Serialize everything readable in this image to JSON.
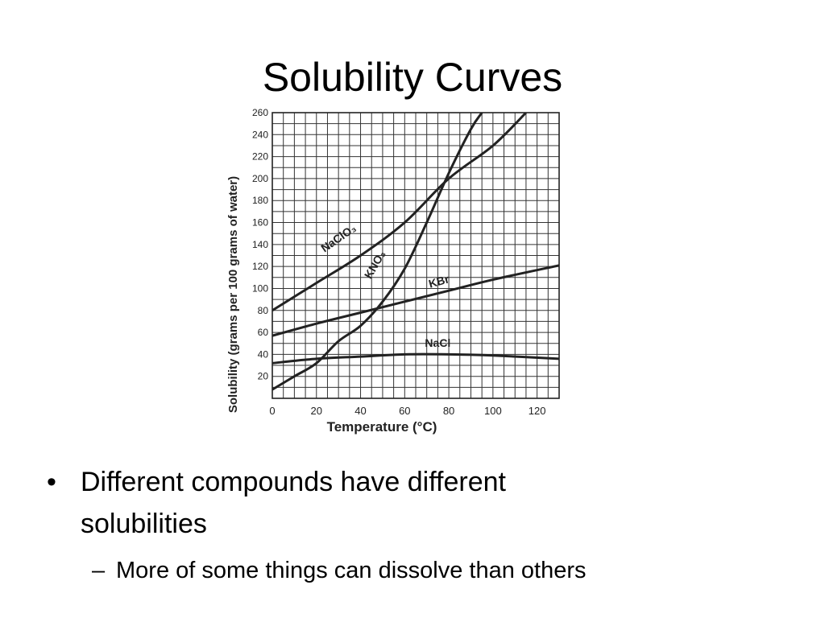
{
  "slide": {
    "title": "Solubility Curves",
    "bullet_marker": "•",
    "sub_marker": "–",
    "bullets": [
      {
        "text": "Different compounds have different solubilities",
        "line1": "Different compounds have different",
        "line2": "solubilities",
        "sub": "More of some things can dissolve than others"
      }
    ]
  },
  "chart_data": {
    "type": "line",
    "title": "",
    "xlabel": "Temperature (°C)",
    "ylabel": "Solubility (grams per 100 grams of water)",
    "xlim": [
      0,
      130
    ],
    "ylim": [
      0,
      260
    ],
    "xticks": [
      0,
      20,
      40,
      60,
      80,
      100,
      120
    ],
    "yticks": [
      20,
      40,
      60,
      80,
      100,
      120,
      140,
      160,
      180,
      200,
      220,
      240,
      260
    ],
    "grid": true,
    "legend": "none",
    "line_color": "#222222",
    "series": [
      {
        "name": "NaClO₃",
        "x": [
          0,
          20,
          40,
          60,
          80,
          100,
          115
        ],
        "y": [
          80,
          105,
          130,
          160,
          200,
          230,
          260
        ]
      },
      {
        "name": "KNO₃",
        "x": [
          0,
          10,
          20,
          30,
          40,
          50,
          60,
          70,
          80,
          90,
          95
        ],
        "y": [
          8,
          20,
          32,
          52,
          66,
          88,
          118,
          160,
          205,
          245,
          260
        ]
      },
      {
        "name": "KBr",
        "x": [
          0,
          20,
          40,
          60,
          80,
          100,
          130
        ],
        "y": [
          57,
          68,
          78,
          88,
          98,
          108,
          121
        ]
      },
      {
        "name": "NaCl",
        "x": [
          0,
          20,
          40,
          60,
          80,
          100,
          130
        ],
        "y": [
          32,
          36,
          38,
          40,
          40,
          39,
          36
        ]
      }
    ]
  }
}
